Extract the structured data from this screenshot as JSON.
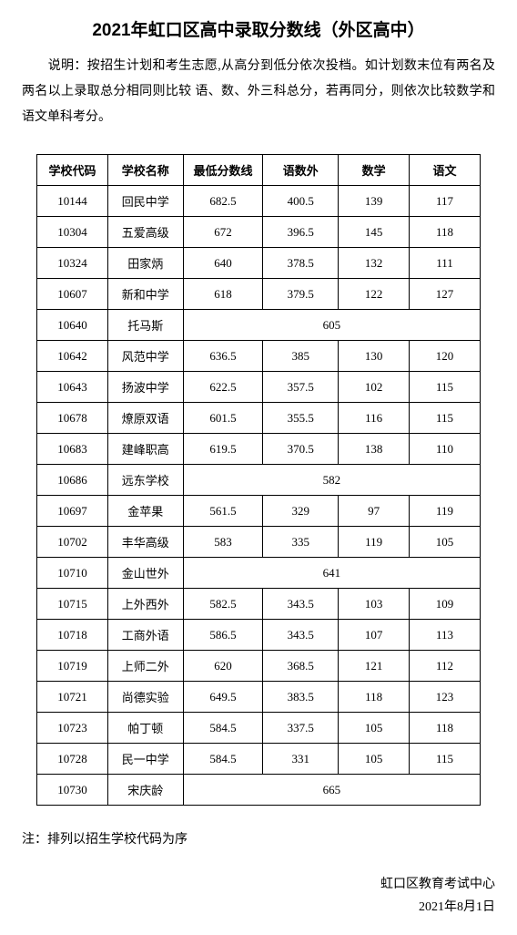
{
  "title": "2021年虹口区高中录取分数线（外区高中）",
  "description": "　　说明：按招生计划和考生志愿,从高分到低分依次投档。如计划数末位有两名及两名以上录取总分相同则比较 语、数、外三科总分，若再同分，则依次比较数学和语文单科考分。",
  "columns": [
    "学校代码",
    "学校名称",
    "最低分数线",
    "语数外",
    "数学",
    "语文"
  ],
  "rows": [
    {
      "code": "10144",
      "name": "回民中学",
      "score": "682.5",
      "yusuwai": "400.5",
      "math": "139",
      "chinese": "117",
      "merged": false
    },
    {
      "code": "10304",
      "name": "五爱高级",
      "score": "672",
      "yusuwai": "396.5",
      "math": "145",
      "chinese": "118",
      "merged": false
    },
    {
      "code": "10324",
      "name": "田家炳",
      "score": "640",
      "yusuwai": "378.5",
      "math": "132",
      "chinese": "111",
      "merged": false
    },
    {
      "code": "10607",
      "name": "新和中学",
      "score": "618",
      "yusuwai": "379.5",
      "math": "122",
      "chinese": "127",
      "merged": false
    },
    {
      "code": "10640",
      "name": "托马斯",
      "score": "605",
      "yusuwai": "",
      "math": "",
      "chinese": "",
      "merged": true
    },
    {
      "code": "10642",
      "name": "风范中学",
      "score": "636.5",
      "yusuwai": "385",
      "math": "130",
      "chinese": "120",
      "merged": false
    },
    {
      "code": "10643",
      "name": "扬波中学",
      "score": "622.5",
      "yusuwai": "357.5",
      "math": "102",
      "chinese": "115",
      "merged": false
    },
    {
      "code": "10678",
      "name": "燎原双语",
      "score": "601.5",
      "yusuwai": "355.5",
      "math": "116",
      "chinese": "115",
      "merged": false
    },
    {
      "code": "10683",
      "name": "建峰职高",
      "score": "619.5",
      "yusuwai": "370.5",
      "math": "138",
      "chinese": "110",
      "merged": false
    },
    {
      "code": "10686",
      "name": "远东学校",
      "score": "582",
      "yusuwai": "",
      "math": "",
      "chinese": "",
      "merged": true
    },
    {
      "code": "10697",
      "name": "金苹果",
      "score": "561.5",
      "yusuwai": "329",
      "math": "97",
      "chinese": "119",
      "merged": false
    },
    {
      "code": "10702",
      "name": "丰华高级",
      "score": "583",
      "yusuwai": "335",
      "math": "119",
      "chinese": "105",
      "merged": false
    },
    {
      "code": "10710",
      "name": "金山世外",
      "score": "641",
      "yusuwai": "",
      "math": "",
      "chinese": "",
      "merged": true
    },
    {
      "code": "10715",
      "name": "上外西外",
      "score": "582.5",
      "yusuwai": "343.5",
      "math": "103",
      "chinese": "109",
      "merged": false
    },
    {
      "code": "10718",
      "name": "工商外语",
      "score": "586.5",
      "yusuwai": "343.5",
      "math": "107",
      "chinese": "113",
      "merged": false
    },
    {
      "code": "10719",
      "name": "上师二外",
      "score": "620",
      "yusuwai": "368.5",
      "math": "121",
      "chinese": "112",
      "merged": false
    },
    {
      "code": "10721",
      "name": "尚德实验",
      "score": "649.5",
      "yusuwai": "383.5",
      "math": "118",
      "chinese": "123",
      "merged": false
    },
    {
      "code": "10723",
      "name": "帕丁顿",
      "score": "584.5",
      "yusuwai": "337.5",
      "math": "105",
      "chinese": "118",
      "merged": false
    },
    {
      "code": "10728",
      "name": "民一中学",
      "score": "584.5",
      "yusuwai": "331",
      "math": "105",
      "chinese": "115",
      "merged": false
    },
    {
      "code": "10730",
      "name": "宋庆龄",
      "score": "665",
      "yusuwai": "",
      "math": "",
      "chinese": "",
      "merged": true
    }
  ],
  "footnote": "注：排列以招生学校代码为序",
  "signature_org": "虹口区教育考试中心",
  "signature_date": "2021年8月1日"
}
